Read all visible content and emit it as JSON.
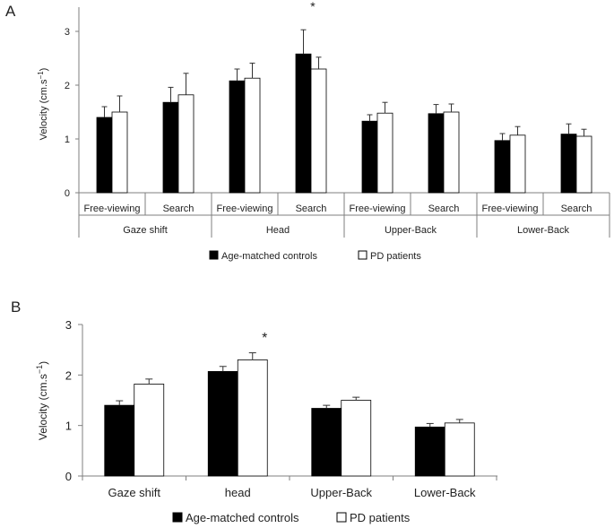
{
  "colors": {
    "controls_fill": "#000000",
    "patients_fill": "#ffffff",
    "axis": "#7f7f7f",
    "bar_stroke": "#000000",
    "text": "#222222"
  },
  "chart_data": [
    {
      "panel_label": "A",
      "type": "bar",
      "ylabel": "Velocity (cm.s",
      "ylabel_exp": "−1",
      "ylabel_close": ")",
      "ylim": [
        0,
        3.5
      ],
      "yticks": [
        "0",
        "1",
        "2",
        "3"
      ],
      "groups": [
        "Gaze shift",
        "Head",
        "Upper-Back",
        "Lower-Back"
      ],
      "categories": [
        "Free-viewing",
        "Search",
        "Free-viewing",
        "Search",
        "Free-viewing",
        "Search",
        "Free-viewing",
        "Search"
      ],
      "series": [
        {
          "name": "Age-matched controls",
          "values": [
            1.4,
            1.68,
            2.08,
            2.58,
            1.33,
            1.47,
            0.97,
            1.09
          ],
          "errors": [
            0.2,
            0.28,
            0.22,
            0.45,
            0.12,
            0.17,
            0.13,
            0.19
          ]
        },
        {
          "name": "PD patients",
          "values": [
            1.5,
            1.82,
            2.13,
            2.3,
            1.48,
            1.5,
            1.07,
            1.05
          ],
          "errors": [
            0.3,
            0.4,
            0.28,
            0.22,
            0.2,
            0.15,
            0.16,
            0.13
          ]
        }
      ],
      "annotations": [
        {
          "text": "*",
          "category_index": 3
        }
      ],
      "legend": [
        "Age-matched controls",
        "PD patients"
      ]
    },
    {
      "panel_label": "B",
      "type": "bar",
      "ylabel": "Velocity (cm.s",
      "ylabel_exp": "−1",
      "ylabel_close": ")",
      "ylim": [
        0,
        3
      ],
      "yticks": [
        "0",
        "1",
        "2",
        "3"
      ],
      "categories": [
        "Gaze shift",
        "head",
        "Upper-Back",
        "Lower-Back"
      ],
      "series": [
        {
          "name": "Age-matched controls",
          "values": [
            1.4,
            2.07,
            1.34,
            0.97
          ],
          "errors": [
            0.09,
            0.1,
            0.06,
            0.07
          ]
        },
        {
          "name": "PD patients",
          "values": [
            1.82,
            2.3,
            1.5,
            1.05
          ],
          "errors": [
            0.1,
            0.14,
            0.06,
            0.07
          ]
        }
      ],
      "annotations": [
        {
          "text": "*",
          "category_index": 1
        }
      ],
      "legend": [
        "Age-matched controls",
        "PD patients"
      ]
    }
  ]
}
